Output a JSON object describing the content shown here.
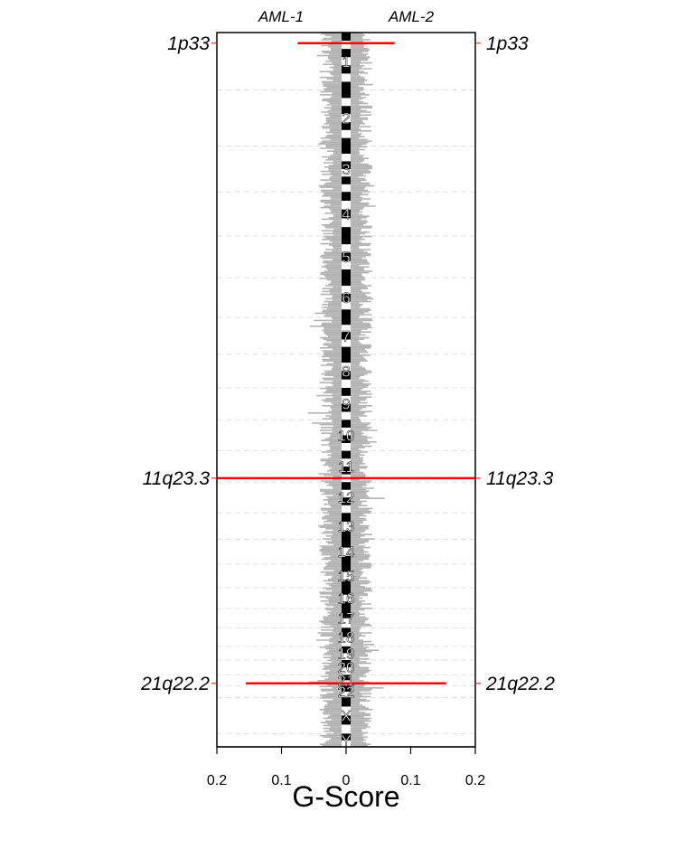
{
  "chart_data": {
    "type": "bar",
    "orientation": "horizontal-mirrored",
    "samples": [
      "AML-1",
      "AML-2"
    ],
    "xlabel": "G-Score",
    "xlim": [
      -0.2,
      0.2
    ],
    "x_ticks": [
      {
        "value": -0.2,
        "label": "0.2"
      },
      {
        "value": -0.1,
        "label": "0.1"
      },
      {
        "value": 0,
        "label": "0"
      },
      {
        "value": 0.1,
        "label": "0.1"
      },
      {
        "value": 0.2,
        "label": "0.2"
      }
    ],
    "chromosomes": [
      {
        "name": "1",
        "start": 0,
        "end": 248
      },
      {
        "name": "2",
        "start": 248,
        "end": 490
      },
      {
        "name": "3",
        "start": 490,
        "end": 688
      },
      {
        "name": "4",
        "start": 688,
        "end": 878
      },
      {
        "name": "5",
        "start": 878,
        "end": 1059
      },
      {
        "name": "6",
        "start": 1059,
        "end": 1230
      },
      {
        "name": "7",
        "start": 1230,
        "end": 1389
      },
      {
        "name": "8",
        "start": 1389,
        "end": 1534
      },
      {
        "name": "9",
        "start": 1534,
        "end": 1672
      },
      {
        "name": "10",
        "start": 1672,
        "end": 1806
      },
      {
        "name": "11",
        "start": 1806,
        "end": 1941
      },
      {
        "name": "12",
        "start": 1941,
        "end": 2074
      },
      {
        "name": "13",
        "start": 2074,
        "end": 2188
      },
      {
        "name": "14",
        "start": 2188,
        "end": 2295
      },
      {
        "name": "15",
        "start": 2295,
        "end": 2397
      },
      {
        "name": "16",
        "start": 2397,
        "end": 2487
      },
      {
        "name": "17",
        "start": 2487,
        "end": 2570
      },
      {
        "name": "18",
        "start": 2570,
        "end": 2650
      },
      {
        "name": "19",
        "start": 2650,
        "end": 2709
      },
      {
        "name": "20",
        "start": 2709,
        "end": 2773
      },
      {
        "name": "21",
        "start": 2773,
        "end": 2820
      },
      {
        "name": "22",
        "start": 2820,
        "end": 2871
      },
      {
        "name": "X",
        "start": 2871,
        "end": 3027
      },
      {
        "name": "Y",
        "start": 3027,
        "end": 3084
      }
    ],
    "genome_range": [
      0,
      3084
    ],
    "peaks": [
      {
        "label": "1p33",
        "position": 46,
        "left": 0.075,
        "right": 0.075
      },
      {
        "label": "11q23.3",
        "position": 1924,
        "left": 0.2,
        "right": 0.2
      },
      {
        "label": "21q22.2",
        "position": 2810,
        "left": 0.155,
        "right": 0.155
      }
    ],
    "colors": {
      "background_profile": "#b3b3b3",
      "peak": "#ff0000",
      "ideogram_dark": "#000000",
      "ideogram_light": "#ffffff",
      "grid": "#e0e0e0"
    },
    "grid": true
  }
}
